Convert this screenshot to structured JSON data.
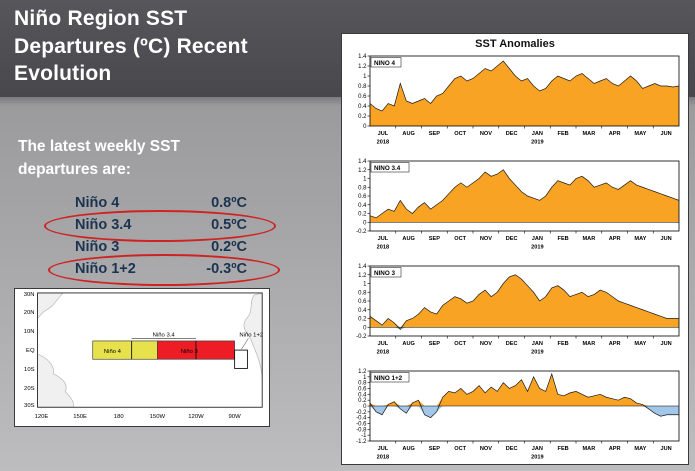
{
  "slide": {
    "title": "Niño Region SST\nDepartures (ºC) Recent\nEvolution",
    "intro": "The latest weekly SST\ndepartures are:",
    "values": [
      {
        "label": "Niño 4",
        "value": "0.8ºC"
      },
      {
        "label": "Niño 3.4",
        "value": "0.5ºC"
      },
      {
        "label": "Niño 3",
        "value": "0.2ºC"
      },
      {
        "label": "Niño 1+2",
        "value": "-0.3ºC"
      }
    ],
    "annotation_color": "#cf2323"
  },
  "map": {
    "lat_labels": [
      "30N",
      "20N",
      "10N",
      "EQ",
      "10S",
      "20S",
      "30S"
    ],
    "lon_labels": [
      "120E",
      "150E",
      "180",
      "150W",
      "120W",
      "90W"
    ],
    "region_labels": {
      "nino4": "Niño 4",
      "nino3": "Niño 3",
      "nino34": "Niño 3.4",
      "nino12": "Niño 1+2"
    },
    "colors": {
      "nino4_fill": "#e7e24b",
      "nino3_fill": "#ee1c25",
      "nino12_fill": "#ffffff"
    }
  },
  "chart_data": {
    "type": "area",
    "panel_title": "SST Anomalies",
    "x": "weekly, Jul 2018 - Jun 2019",
    "x_tick_labels": [
      "JUL",
      "AUG",
      "SEP",
      "OCT",
      "NOV",
      "DEC",
      "JAN",
      "FEB",
      "MAR",
      "APR",
      "MAY",
      "JUN"
    ],
    "year_start": "2018",
    "year_mid": "2019",
    "positive_fill": "#f9a325",
    "negative_fill": "#a3c7e8",
    "ytick_step": 0.2,
    "series": [
      {
        "name": "NINO 4",
        "ylim": [
          0,
          1.4
        ],
        "values": [
          0.45,
          0.35,
          0.3,
          0.45,
          0.4,
          0.85,
          0.5,
          0.45,
          0.5,
          0.55,
          0.45,
          0.6,
          0.65,
          0.8,
          0.95,
          1.0,
          0.9,
          0.95,
          1.05,
          1.15,
          1.1,
          1.2,
          1.3,
          1.15,
          1.0,
          0.9,
          0.95,
          0.8,
          0.7,
          0.75,
          0.9,
          1.0,
          0.95,
          0.9,
          1.0,
          1.05,
          0.95,
          0.85,
          0.9,
          0.95,
          0.85,
          0.8,
          0.9,
          1.0,
          0.9,
          0.75,
          0.8,
          0.85,
          0.8,
          0.8,
          0.78,
          0.8
        ]
      },
      {
        "name": "NINO 3.4",
        "ylim": [
          -0.2,
          1.4
        ],
        "values": [
          0.15,
          0.1,
          0.2,
          0.3,
          0.25,
          0.5,
          0.3,
          0.2,
          0.35,
          0.45,
          0.3,
          0.4,
          0.5,
          0.65,
          0.8,
          0.9,
          0.8,
          0.9,
          1.0,
          1.15,
          1.05,
          1.1,
          1.2,
          1.0,
          0.85,
          0.7,
          0.6,
          0.55,
          0.5,
          0.6,
          0.8,
          0.95,
          0.9,
          0.85,
          1.0,
          1.05,
          0.95,
          0.8,
          0.85,
          0.9,
          0.8,
          0.75,
          0.85,
          0.95,
          0.85,
          0.8,
          0.75,
          0.7,
          0.65,
          0.6,
          0.55,
          0.5
        ]
      },
      {
        "name": "NINO 3",
        "ylim": [
          -0.2,
          1.4
        ],
        "values": [
          0.25,
          0.15,
          0.05,
          0.2,
          0.1,
          -0.05,
          0.15,
          0.2,
          0.3,
          0.45,
          0.35,
          0.3,
          0.5,
          0.6,
          0.7,
          0.65,
          0.55,
          0.6,
          0.75,
          0.85,
          0.7,
          0.8,
          1.0,
          1.15,
          1.2,
          1.1,
          0.95,
          0.8,
          0.6,
          0.7,
          0.9,
          0.95,
          0.85,
          0.7,
          0.75,
          0.8,
          0.7,
          0.75,
          0.85,
          0.8,
          0.7,
          0.6,
          0.55,
          0.5,
          0.45,
          0.4,
          0.35,
          0.3,
          0.25,
          0.2,
          0.2,
          0.2
        ]
      },
      {
        "name": "NINO 1+2",
        "ylim": [
          -1.2,
          1.2
        ],
        "values": [
          0.1,
          -0.2,
          -0.3,
          0.05,
          0.15,
          -0.1,
          -0.25,
          0.1,
          0.2,
          -0.3,
          -0.4,
          -0.2,
          0.3,
          0.5,
          0.45,
          0.6,
          0.4,
          0.5,
          0.7,
          0.45,
          0.65,
          0.5,
          0.8,
          0.6,
          0.7,
          0.9,
          0.5,
          1.0,
          0.6,
          0.5,
          1.1,
          0.4,
          0.35,
          0.45,
          0.5,
          0.4,
          0.3,
          0.35,
          0.4,
          0.3,
          0.25,
          0.2,
          0.3,
          0.25,
          0.1,
          0.05,
          -0.1,
          -0.25,
          -0.35,
          -0.3,
          -0.3,
          -0.3
        ]
      }
    ]
  }
}
